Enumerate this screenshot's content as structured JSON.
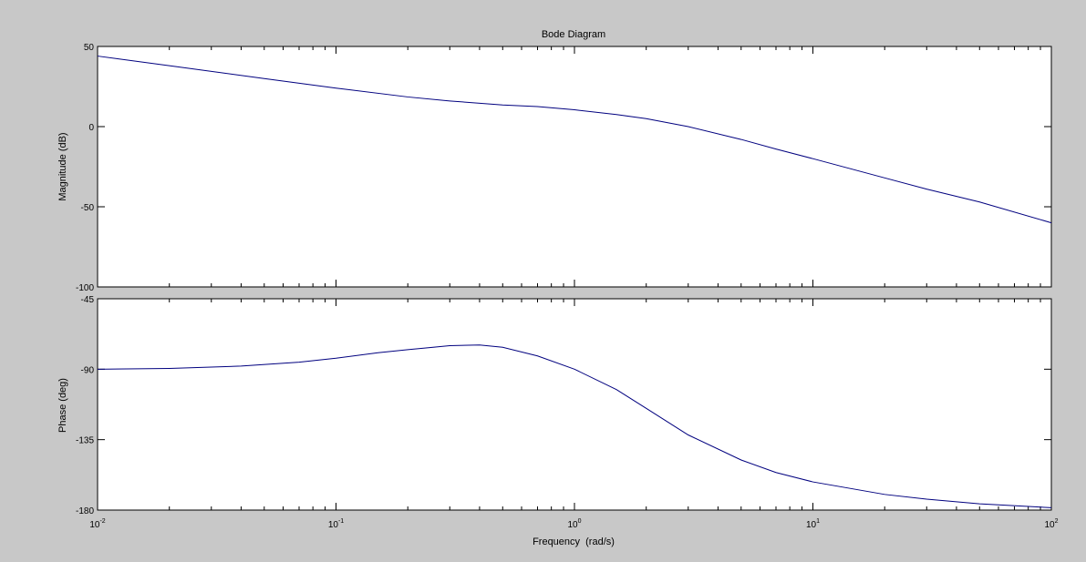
{
  "colors": {
    "figure_background": "#c8c8c8",
    "axes_background": "#ffffff",
    "line": "#00007f",
    "axis": "#000000"
  },
  "chart_data": [
    {
      "type": "line",
      "title": "Bode Diagram",
      "ylabel": "Magnitude (dB)",
      "xscale": "log",
      "xlim": [
        0.01,
        100
      ],
      "ylim": [
        -100,
        50
      ],
      "yticks": [
        "50",
        "0",
        "-50",
        "-100"
      ],
      "ytick_values": [
        50,
        0,
        -50,
        -100
      ],
      "grid": false,
      "series": [
        {
          "x": [
            0.01,
            0.02,
            0.05,
            0.1,
            0.2,
            0.3,
            0.5,
            0.7,
            1,
            1.5,
            2,
            3,
            5,
            7,
            10,
            20,
            30,
            50,
            100
          ],
          "values": [
            44,
            38,
            30,
            24,
            18.5,
            16,
            13.5,
            12.5,
            10.5,
            7.5,
            5,
            0,
            -8,
            -14,
            -20,
            -32,
            -39,
            -47,
            -60
          ]
        }
      ]
    },
    {
      "type": "line",
      "ylabel": "Phase (deg)",
      "xlabel": "Frequency  (rad/s)",
      "xscale": "log",
      "xlim": [
        0.01,
        100
      ],
      "ylim": [
        -180,
        -45
      ],
      "yticks": [
        "-45",
        "-90",
        "-135",
        "-180"
      ],
      "ytick_values": [
        -45,
        -90,
        -135,
        -180
      ],
      "xticks": [
        {
          "value": 0.01,
          "base": "10",
          "exp": "-2"
        },
        {
          "value": 0.1,
          "base": "10",
          "exp": "-1"
        },
        {
          "value": 1,
          "base": "10",
          "exp": "0"
        },
        {
          "value": 10,
          "base": "10",
          "exp": "1"
        },
        {
          "value": 100,
          "base": "10",
          "exp": "2"
        }
      ],
      "grid": false,
      "series": [
        {
          "x": [
            0.01,
            0.02,
            0.04,
            0.07,
            0.1,
            0.15,
            0.2,
            0.3,
            0.4,
            0.5,
            0.7,
            1,
            1.5,
            2,
            3,
            5,
            7,
            10,
            20,
            30,
            50,
            100
          ],
          "values": [
            -90,
            -89.5,
            -88,
            -85.5,
            -83,
            -79.5,
            -77.5,
            -75,
            -74.5,
            -76,
            -81.5,
            -90,
            -103,
            -115,
            -132,
            -148,
            -156,
            -162,
            -170,
            -173,
            -176,
            -178.5
          ]
        }
      ]
    }
  ]
}
